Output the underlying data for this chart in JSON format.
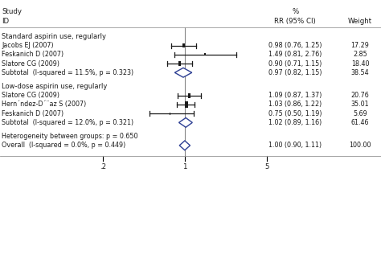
{
  "group1_label": "Standard aspirin use, regularly",
  "group2_label": "Low-dose aspirin use, regularly",
  "hetero_label": "Heterogeneity between groups: p = 0.650",
  "studies": [
    {
      "label": "Jacobs EJ (2007)",
      "rr": 0.98,
      "ci_lo": 0.76,
      "ci_hi": 1.25,
      "weight": 17.29,
      "rr_str": "0.98 (0.76, 1.25)",
      "wt_str": "17.29",
      "is_subtotal": false,
      "is_overall": false
    },
    {
      "label": "Feskanich D (2007)",
      "rr": 1.49,
      "ci_lo": 0.81,
      "ci_hi": 2.76,
      "weight": 2.85,
      "rr_str": "1.49 (0.81, 2.76)",
      "wt_str": "2.85",
      "is_subtotal": false,
      "is_overall": false
    },
    {
      "label": "Slatore CG (2009)",
      "rr": 0.9,
      "ci_lo": 0.71,
      "ci_hi": 1.15,
      "weight": 18.4,
      "rr_str": "0.90 (0.71, 1.15)",
      "wt_str": "18.40",
      "is_subtotal": false,
      "is_overall": false
    },
    {
      "label": "Subtotal  (I-squared = 11.5%, p = 0.323)",
      "rr": 0.97,
      "ci_lo": 0.82,
      "ci_hi": 1.15,
      "weight": 38.54,
      "rr_str": "0.97 (0.82, 1.15)",
      "wt_str": "38.54",
      "is_subtotal": true,
      "is_overall": false
    },
    {
      "label": "Slatore CG (2009)",
      "rr": 1.09,
      "ci_lo": 0.87,
      "ci_hi": 1.37,
      "weight": 20.76,
      "rr_str": "1.09 (0.87, 1.37)",
      "wt_str": "20.76",
      "is_subtotal": false,
      "is_overall": false
    },
    {
      "label": "Hern´ndez-D´¨az S (2007)",
      "rr": 1.03,
      "ci_lo": 0.86,
      "ci_hi": 1.22,
      "weight": 35.01,
      "rr_str": "1.03 (0.86, 1.22)",
      "wt_str": "35.01",
      "is_subtotal": false,
      "is_overall": false
    },
    {
      "label": "Feskanich D (2007)",
      "rr": 0.75,
      "ci_lo": 0.5,
      "ci_hi": 1.19,
      "weight": 5.69,
      "rr_str": "0.75 (0.50, 1.19)",
      "wt_str": "5.69",
      "is_subtotal": false,
      "is_overall": false
    },
    {
      "label": "Subtotal  (I-squared = 12.0%, p = 0.321)",
      "rr": 1.02,
      "ci_lo": 0.89,
      "ci_hi": 1.16,
      "weight": 61.46,
      "rr_str": "1.02 (0.89, 1.16)",
      "wt_str": "61.46",
      "is_subtotal": true,
      "is_overall": false
    },
    {
      "label": "Overall  (I-squared = 0.0%, p = 0.449)",
      "rr": 1.0,
      "ci_lo": 0.9,
      "ci_hi": 1.11,
      "weight": 100.0,
      "rr_str": "1.00 (0.90, 1.11)",
      "wt_str": "100.00",
      "is_subtotal": false,
      "is_overall": true
    }
  ],
  "xticks": [
    0.2,
    1.0,
    5.0
  ],
  "xtick_labels": [
    ".2",
    "1",
    "5"
  ],
  "diamond_color": "#2e4094",
  "line_color": "#1a1a1a",
  "text_color": "#1a1a1a",
  "bg_color": "#ffffff",
  "line_width": 0.9,
  "fs_header": 6.2,
  "fs_label": 5.8,
  "fs_group": 6.0
}
